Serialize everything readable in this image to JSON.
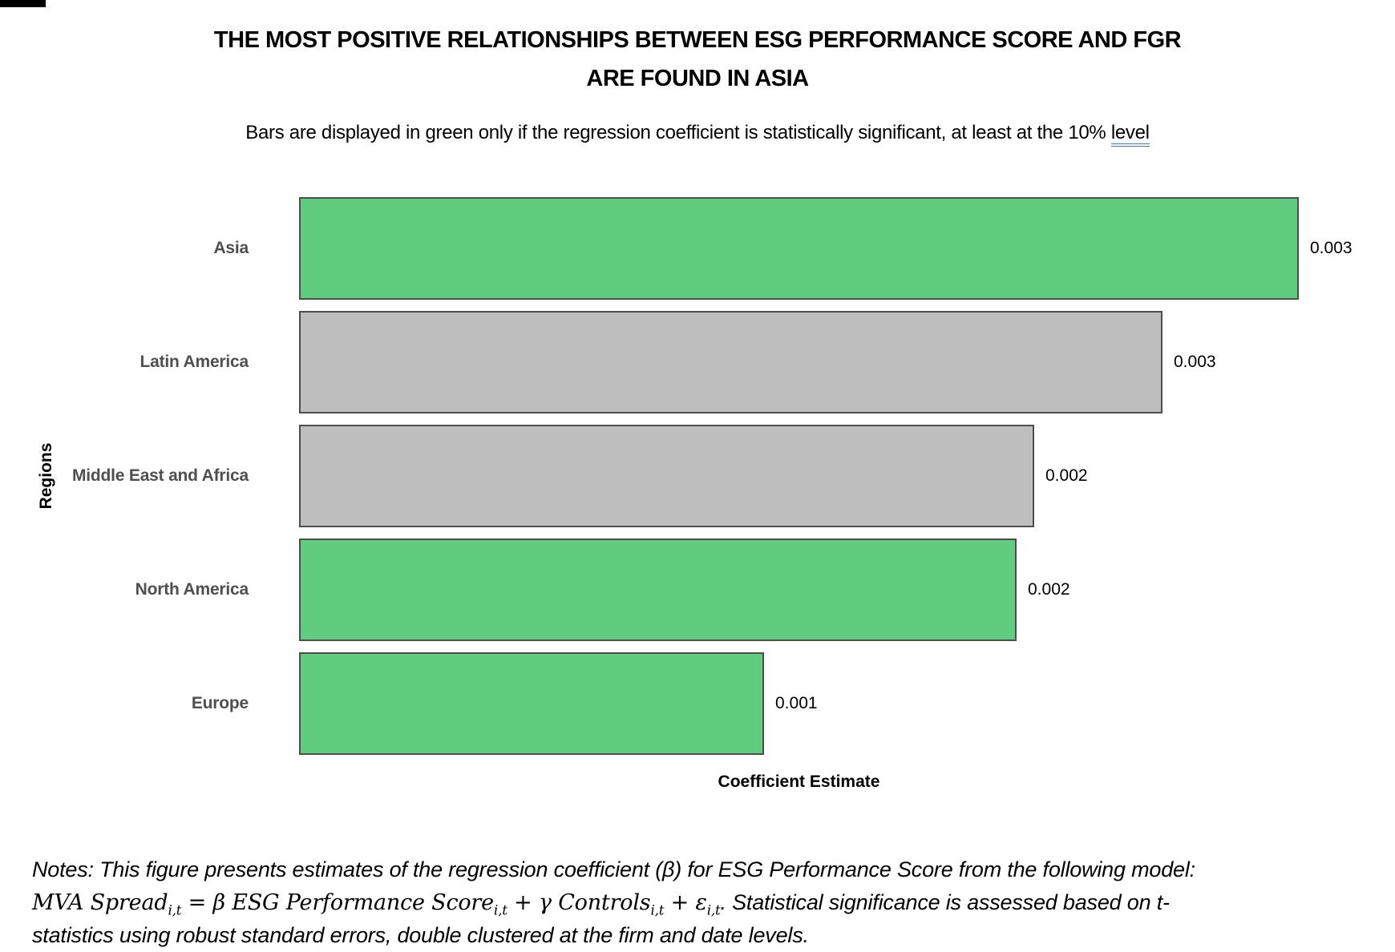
{
  "title": {
    "line1": "THE MOST POSITIVE RELATIONSHIPS BETWEEN ESG PERFORMANCE SCORE AND FGR",
    "line2": "ARE FOUND IN ASIA"
  },
  "subtitle": {
    "text_before": "Bars are displayed in green only if the regression coefficient is statistically significant, at least at the 10% ",
    "underlined_word": "level",
    "underline_color": "#4472C4"
  },
  "chart_data": {
    "type": "bar",
    "orientation": "horizontal",
    "title": "THE MOST POSITIVE RELATIONSHIPS BETWEEN ESG PERFORMANCE SCORE AND FGR ARE FOUND IN ASIA",
    "categories": [
      "Asia",
      "Latin America",
      "Middle East and Africa",
      "North America",
      "Europe"
    ],
    "values": [
      0.003,
      0.003,
      0.002,
      0.002,
      0.001
    ],
    "value_labels": [
      "0.003",
      "0.003",
      "0.002",
      "0.002",
      "0.001"
    ],
    "significant": [
      true,
      false,
      false,
      true,
      true
    ],
    "bar_width_fractions": [
      1.0,
      0.864,
      0.735,
      0.718,
      0.465
    ],
    "xlabel": "Coefficient Estimate",
    "ylabel": "Regions",
    "xlim": [
      0,
      0.0031
    ],
    "grid": false,
    "axis_ticks": "none",
    "legend": "none",
    "value_label_position": "right-of-bar",
    "colors": {
      "significant": "#5FCD7D",
      "not_significant": "#BEBEBE",
      "bar_border": "#4D4D4D",
      "category_label": "#4F4F4F",
      "value_label": "#000000"
    }
  },
  "notes": {
    "lead_in": "Notes: This figure presents estimates of the regression coefficient (β) for ESG Performance Score from the following model: ",
    "formula": [
      {
        "text": "MVA Spread",
        "sub": "i,t"
      },
      {
        "text": " = β ESG Performance Score",
        "sub": "i,t"
      },
      {
        "text": " + γ Controls",
        "sub": "i,t"
      },
      {
        "text": " + ε",
        "sub": "i,t"
      }
    ],
    "tail": ". Statistical significance is assessed based on t-statistics using robust standard errors, double clustered at the firm and date levels."
  }
}
